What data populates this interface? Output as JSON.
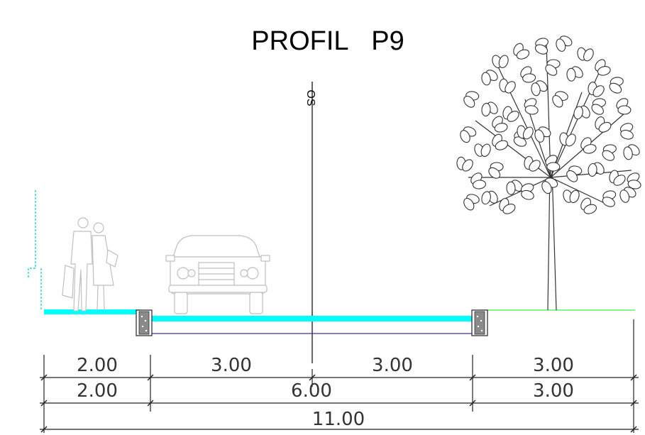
{
  "title": "PROFIL P9",
  "axis_label": "OS",
  "dimensions": {
    "row1": [
      "2.00",
      "3.00",
      "3.00",
      "3.00"
    ],
    "row2": [
      "2.00",
      "6.00",
      "3.00"
    ],
    "row3": [
      "11.00"
    ]
  },
  "colors": {
    "pavement": "#00ffff",
    "green_strip": "#66ee66",
    "subbase_line": "#3333aa",
    "curb_fill": "#8a8a8a",
    "drawing": "#222222"
  },
  "icons": {
    "pedestrians": "pedestrians-icon",
    "car": "car-icon",
    "tree": "tree-icon",
    "curb": "curb-icon"
  }
}
